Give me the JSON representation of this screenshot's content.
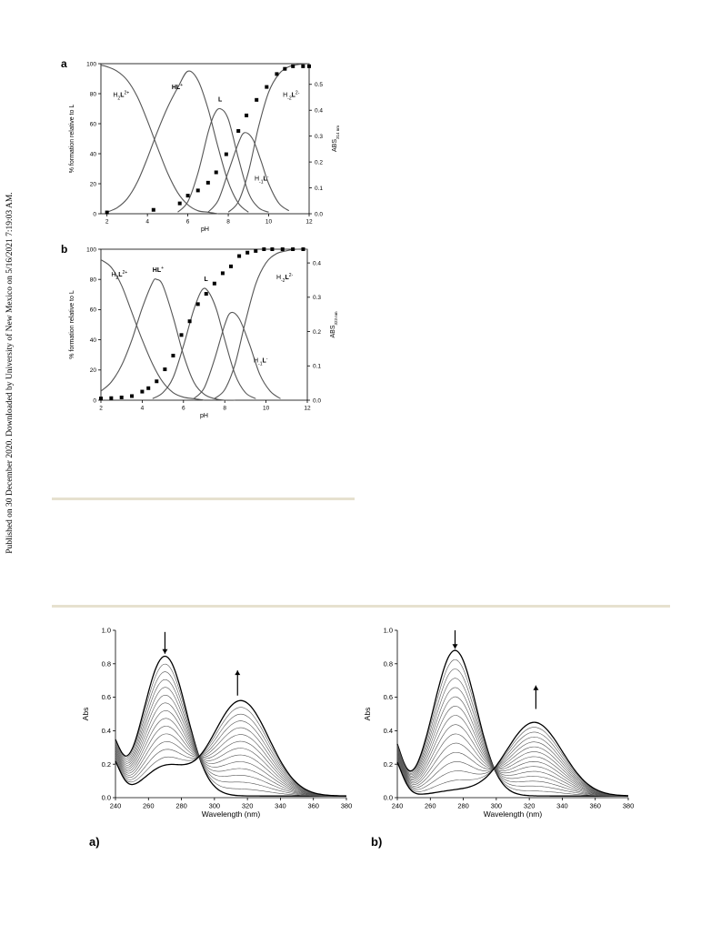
{
  "side_note": "Published on 30 December 2020. Downloaded by University of New Mexico on 5/16/2021 7:19:03 AM.",
  "panel_a_letter": "a",
  "panel_b_letter": "b",
  "subfig_a_letter": "a)",
  "subfig_b_letter": "b)",
  "chart_data": [
    {
      "id": "speciation-a",
      "type": "line",
      "xlabel": "pH",
      "ylabel": "% formation relative to L",
      "y2label": "ABS",
      "y2label_sub": "314 nm",
      "xlim": [
        1.7,
        12
      ],
      "ylim": [
        0,
        100
      ],
      "y2lim": [
        0,
        0.58
      ],
      "xticks": [
        2,
        4,
        6,
        8,
        10,
        12
      ],
      "yticks": [
        0,
        20,
        40,
        60,
        80,
        100
      ],
      "y2ticks": [
        0.0,
        0.1,
        0.2,
        0.3,
        0.4,
        0.5
      ],
      "grid": false,
      "species": [
        {
          "label_parts": [
            [
              "H",
              ""
            ],
            [
              "2",
              "sub"
            ],
            [
              "L",
              "b"
            ],
            [
              "2+",
              "sup"
            ]
          ],
          "lx": 2.3,
          "ly": 78
        },
        {
          "label_parts": [
            [
              "H",
              "b"
            ],
            [
              "L",
              "b"
            ],
            [
              "+",
              "sup"
            ]
          ],
          "lx": 5.2,
          "ly": 83
        },
        {
          "label_parts": [
            [
              "L",
              "b"
            ]
          ],
          "lx": 7.5,
          "ly": 75
        },
        {
          "label_parts": [
            [
              "H",
              ""
            ],
            [
              "-2",
              "sub"
            ],
            [
              "L",
              "b"
            ],
            [
              "2-",
              "sup"
            ]
          ],
          "lx": 10.7,
          "ly": 78
        },
        {
          "label_parts": [
            [
              "H",
              ""
            ],
            [
              "-1",
              "sub"
            ],
            [
              "L",
              "b"
            ],
            [
              "-",
              "sup"
            ]
          ],
          "lx": 9.3,
          "ly": 22
        }
      ],
      "series": [
        {
          "name": "H2L2+",
          "x": [
            1.7,
            2.0,
            2.5,
            3.0,
            3.5,
            4.0,
            4.5,
            5.0,
            5.5,
            6.0,
            6.5,
            7.0,
            7.5
          ],
          "y": [
            99,
            98,
            95,
            89,
            78,
            62,
            44,
            27,
            14,
            6,
            2,
            1,
            0
          ]
        },
        {
          "name": "HL+",
          "x": [
            2.0,
            2.5,
            3.0,
            3.5,
            4.0,
            4.5,
            5.0,
            5.5,
            6.0,
            6.5,
            7.0,
            7.5,
            8.0,
            8.5,
            9.0
          ],
          "y": [
            1,
            4,
            10,
            21,
            37,
            55,
            71,
            84,
            95,
            89,
            70,
            44,
            21,
            7,
            1
          ]
        },
        {
          "name": "L",
          "x": [
            5.5,
            6.0,
            6.5,
            7.0,
            7.3,
            7.6,
            8.0,
            8.5,
            9.0,
            9.5,
            10.0
          ],
          "y": [
            1,
            8,
            27,
            54,
            66,
            70,
            63,
            37,
            14,
            4,
            1
          ]
        },
        {
          "name": "H-1L-",
          "x": [
            7.0,
            7.5,
            8.0,
            8.5,
            8.8,
            9.2,
            9.6,
            10.0,
            10.5,
            11.0
          ],
          "y": [
            1,
            9,
            28,
            47,
            54,
            50,
            36,
            20,
            7,
            2
          ]
        },
        {
          "name": "H-2L2-",
          "x": [
            8.0,
            8.5,
            9.0,
            9.5,
            10.0,
            10.5,
            11.0,
            11.5,
            12.0
          ],
          "y": [
            1,
            8,
            28,
            58,
            81,
            93,
            98,
            99.5,
            100
          ]
        }
      ],
      "points": {
        "name": "ABS 314 nm",
        "x": [
          2.0,
          4.3,
          5.6,
          6.0,
          6.5,
          7.0,
          7.4,
          7.9,
          8.5,
          8.9,
          9.4,
          9.9,
          10.4,
          10.8,
          11.2,
          11.7,
          12.0
        ],
        "y": [
          0.005,
          0.015,
          0.04,
          0.07,
          0.09,
          0.12,
          0.16,
          0.23,
          0.32,
          0.38,
          0.44,
          0.49,
          0.54,
          0.56,
          0.57,
          0.57,
          0.57
        ]
      }
    },
    {
      "id": "speciation-b",
      "type": "line",
      "xlabel": "pH",
      "ylabel": "% formation relative to L",
      "y2label": "ABS",
      "y2label_sub": "323 nm",
      "xlim": [
        2,
        12
      ],
      "ylim": [
        0,
        100
      ],
      "y2lim": [
        0,
        0.44
      ],
      "xticks": [
        2,
        4,
        6,
        8,
        10,
        12
      ],
      "yticks": [
        0,
        20,
        40,
        60,
        80,
        100
      ],
      "y2ticks": [
        0.0,
        0.1,
        0.2,
        0.3,
        0.4
      ],
      "grid": false,
      "species": [
        {
          "label_parts": [
            [
              "H",
              ""
            ],
            [
              "2",
              "sub"
            ],
            [
              "L",
              "b"
            ],
            [
              "2+",
              "sup"
            ]
          ],
          "lx": 2.5,
          "ly": 82
        },
        {
          "label_parts": [
            [
              "H",
              "b"
            ],
            [
              "L",
              "b"
            ],
            [
              "+",
              "sup"
            ]
          ],
          "lx": 4.5,
          "ly": 85
        },
        {
          "label_parts": [
            [
              "L",
              "b"
            ]
          ],
          "lx": 7.0,
          "ly": 79
        },
        {
          "label_parts": [
            [
              "H",
              ""
            ],
            [
              "-2",
              "sub"
            ],
            [
              "L",
              "b"
            ],
            [
              "2-",
              "sup"
            ]
          ],
          "lx": 10.5,
          "ly": 80
        },
        {
          "label_parts": [
            [
              "H",
              ""
            ],
            [
              "-1",
              "sub"
            ],
            [
              "L",
              "b"
            ],
            [
              "-",
              "sup"
            ]
          ],
          "lx": 9.4,
          "ly": 25
        }
      ],
      "series": [
        {
          "name": "H2L2+",
          "x": [
            2.0,
            2.5,
            3.0,
            3.5,
            4.0,
            4.5,
            5.0,
            5.5,
            6.0,
            6.5,
            7.0
          ],
          "y": [
            93,
            88,
            76,
            58,
            40,
            24,
            12,
            5,
            2,
            1,
            0
          ]
        },
        {
          "name": "HL+",
          "x": [
            2.0,
            2.5,
            3.0,
            3.5,
            4.0,
            4.5,
            4.7,
            5.0,
            5.5,
            6.0,
            6.5,
            7.0,
            7.5,
            8.0,
            8.5
          ],
          "y": [
            6,
            12,
            23,
            40,
            61,
            78,
            80,
            76,
            55,
            30,
            12,
            4,
            1,
            0,
            0
          ]
        },
        {
          "name": "L",
          "x": [
            4.5,
            5.0,
            5.5,
            6.0,
            6.5,
            6.9,
            7.2,
            7.6,
            8.0,
            8.5,
            9.0,
            9.5
          ],
          "y": [
            1,
            5,
            15,
            36,
            60,
            73,
            72,
            60,
            40,
            17,
            5,
            1
          ]
        },
        {
          "name": "H-1L-",
          "x": [
            6.5,
            7.0,
            7.5,
            8.0,
            8.3,
            8.7,
            9.2,
            9.7,
            10.2,
            10.7
          ],
          "y": [
            1,
            8,
            27,
            50,
            58,
            54,
            37,
            17,
            6,
            1
          ]
        },
        {
          "name": "H-2L2-",
          "x": [
            7.5,
            8.0,
            8.5,
            9.0,
            9.5,
            10.0,
            10.5,
            11.0,
            11.5,
            12.0
          ],
          "y": [
            1,
            7,
            24,
            52,
            77,
            91,
            97,
            99,
            100,
            100
          ]
        }
      ],
      "points": {
        "name": "ABS 323 nm",
        "x": [
          2.0,
          2.5,
          3.0,
          3.5,
          4.0,
          4.3,
          4.7,
          5.1,
          5.5,
          5.9,
          6.3,
          6.7,
          7.1,
          7.5,
          7.9,
          8.3,
          8.7,
          9.1,
          9.5,
          9.9,
          10.3,
          10.8,
          11.3,
          11.8
        ],
        "y": [
          0.005,
          0.006,
          0.008,
          0.012,
          0.025,
          0.035,
          0.055,
          0.09,
          0.13,
          0.19,
          0.23,
          0.28,
          0.31,
          0.34,
          0.37,
          0.39,
          0.42,
          0.43,
          0.435,
          0.44,
          0.44,
          0.44,
          0.44,
          0.44
        ]
      }
    },
    {
      "id": "spectra-a",
      "type": "line",
      "xlabel": "Wavelength (nm)",
      "ylabel": "Abs",
      "xlim": [
        240,
        380
      ],
      "ylim": [
        0,
        1.0
      ],
      "xticks": [
        240,
        260,
        280,
        300,
        320,
        340,
        360,
        380
      ],
      "yticks": [
        0.0,
        0.2,
        0.4,
        0.6,
        0.8,
        1.0
      ],
      "yticklabels": [
        "0.0",
        "0.2",
        "0.4",
        "0.6",
        "0.8",
        "1.0"
      ],
      "grid": false,
      "family": {
        "base_value": 0.4,
        "peak1_x": 270,
        "peak1_max": 0.835,
        "peak1_min": 0.17,
        "peak2_x": 316,
        "peak2_max": 0.57,
        "peak2_min": 0.0,
        "curves": 15
      },
      "arrows": [
        {
          "x": 270,
          "dir": "down",
          "from": 0.99,
          "to": 0.86
        },
        {
          "x": 314,
          "dir": "up",
          "from": 0.61,
          "to": 0.76
        }
      ]
    },
    {
      "id": "spectra-b",
      "type": "line",
      "xlabel": "Wavelength (nm)",
      "ylabel": "Abs",
      "xlim": [
        240,
        380
      ],
      "ylim": [
        0,
        1.0
      ],
      "xticks": [
        240,
        260,
        280,
        300,
        320,
        340,
        360,
        380
      ],
      "yticks": [
        0.0,
        0.2,
        0.4,
        0.6,
        0.8,
        1.0
      ],
      "yticklabels": [
        "0.0",
        "0.2",
        "0.4",
        "0.6",
        "0.8",
        "1.0"
      ],
      "grid": false,
      "family": {
        "base_value": 0.41,
        "peak1_x": 275,
        "peak1_max": 0.87,
        "peak1_min": 0.03,
        "peak2_x": 323,
        "peak2_max": 0.44,
        "peak2_min": 0.0,
        "curves": 16
      },
      "arrows": [
        {
          "x": 275,
          "dir": "down",
          "from": 1.0,
          "to": 0.89
        },
        {
          "x": 324,
          "dir": "up",
          "from": 0.53,
          "to": 0.67
        }
      ]
    }
  ]
}
